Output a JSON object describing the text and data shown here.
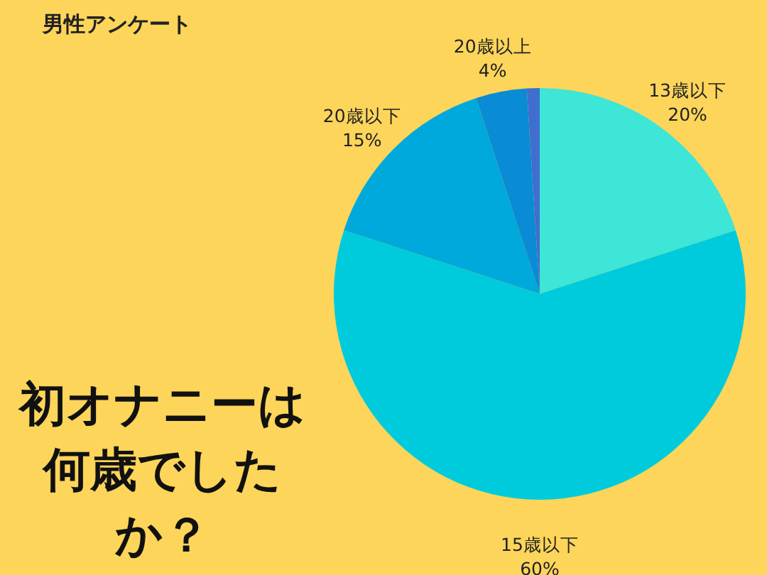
{
  "chart_data": {
    "type": "pie",
    "title": "男性アンケート",
    "annotations": [
      "初オナニーは何歳でしたか？"
    ],
    "categories": [
      "13歳以下",
      "15歳以下",
      "20歳以下",
      "20歳以上",
      null
    ],
    "values": [
      20,
      60,
      15,
      4,
      1
    ],
    "value_labels": [
      "20%",
      "60%",
      "15%",
      "4%",
      null
    ],
    "colors": [
      "#3de6d6",
      "#00cbdc",
      "#00a9db",
      "#0a8bd6",
      "#3f6ecf"
    ]
  }
}
